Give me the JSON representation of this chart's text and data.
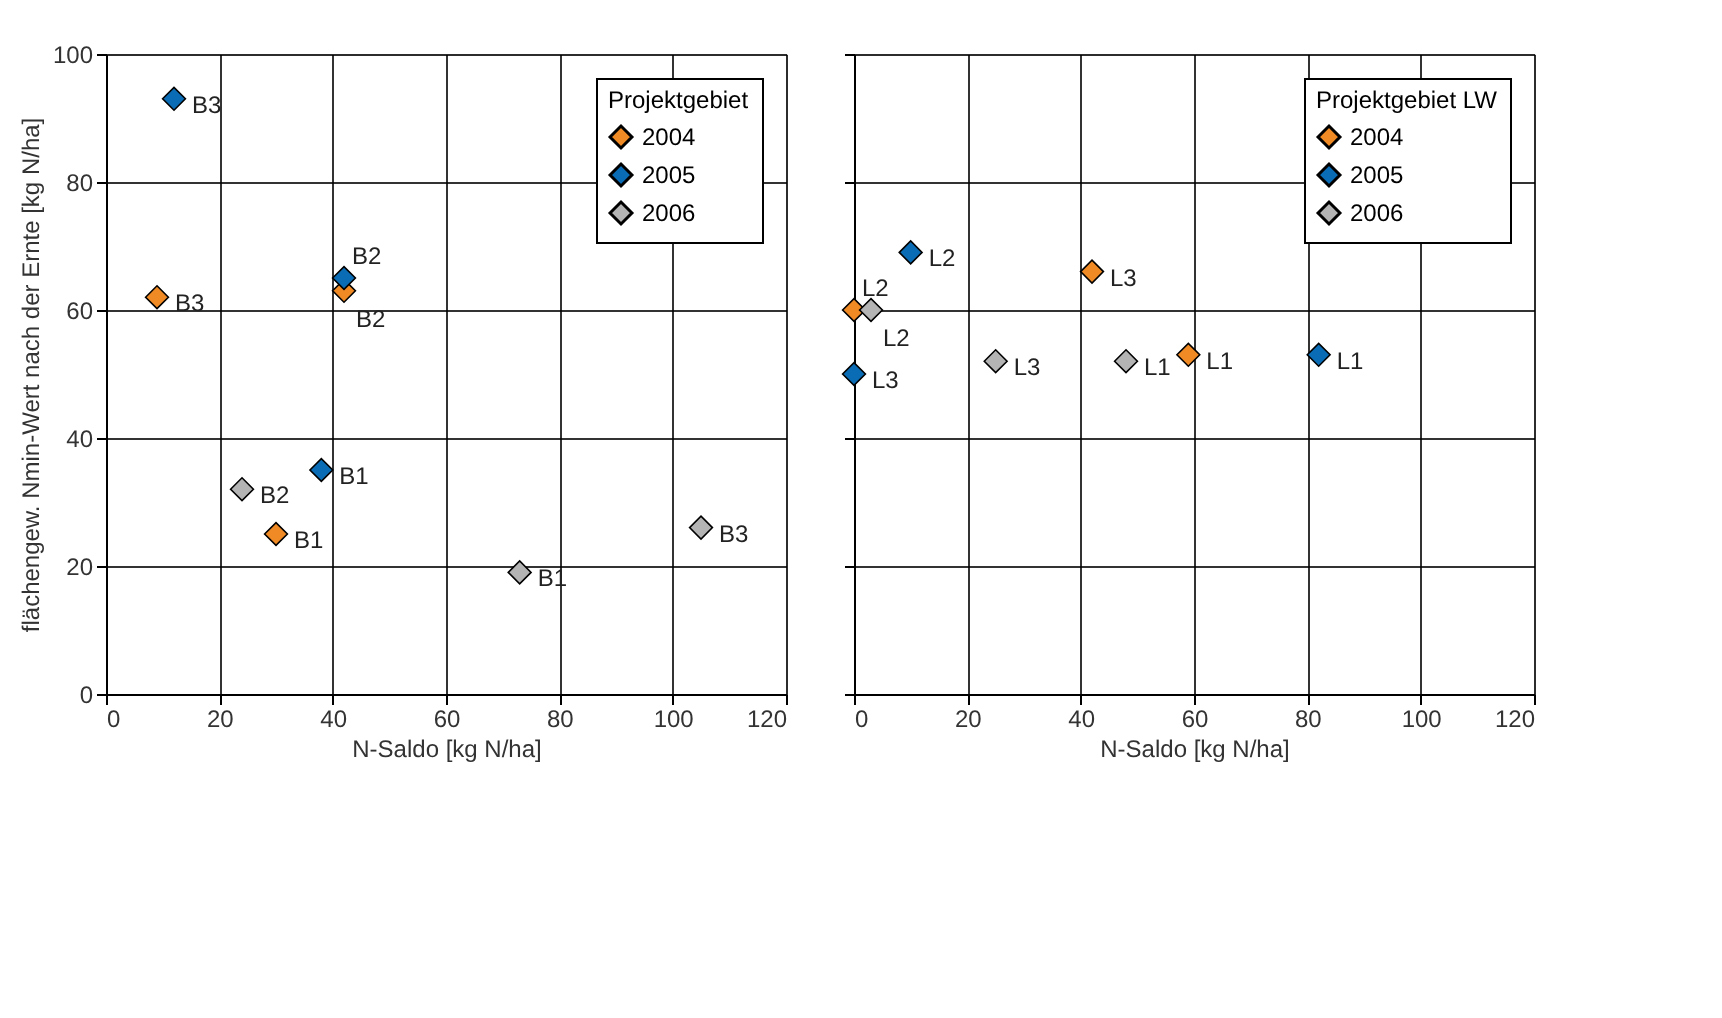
{
  "chart_data": [
    {
      "type": "scatter",
      "xlabel": "N-Saldo [kg N/ha]",
      "ylabel": "flächengew. Nmin-Wert nach der Ernte [kg N/ha]",
      "legend_title": "Projektgebiet",
      "xlim": [
        0,
        120
      ],
      "ylim": [
        0,
        100
      ],
      "xticks": [
        0,
        20,
        40,
        60,
        80,
        100,
        120
      ],
      "yticks": [
        0,
        20,
        40,
        60,
        80,
        100
      ],
      "grid": true,
      "legend": "top right",
      "marker": "diamond",
      "series": [
        {
          "name": "2004",
          "color": "#f08a24",
          "x": [
            9,
            42,
            30
          ],
          "values": [
            62,
            63,
            25
          ]
        },
        {
          "name": "2005",
          "color": "#0a6cb4",
          "x": [
            12,
            42,
            38
          ],
          "values": [
            93,
            65,
            35
          ]
        },
        {
          "name": "2006",
          "color": "#b4b4b4",
          "x": [
            24,
            73,
            105
          ],
          "values": [
            32,
            19,
            26
          ]
        }
      ],
      "annotations": [
        {
          "text": "B3",
          "x": 9,
          "y": 62
        },
        {
          "text": "B2",
          "x": 42,
          "y": 63
        },
        {
          "text": "B1",
          "x": 30,
          "y": 25
        },
        {
          "text": "B3",
          "x": 12,
          "y": 93
        },
        {
          "text": "B2",
          "x": 42,
          "y": 65
        },
        {
          "text": "B1",
          "x": 38,
          "y": 35
        },
        {
          "text": "B2",
          "x": 24,
          "y": 32
        },
        {
          "text": "B1",
          "x": 73,
          "y": 19
        },
        {
          "text": "B3",
          "x": 105,
          "y": 26
        }
      ]
    },
    {
      "type": "scatter",
      "xlabel": "N-Saldo [kg N/ha]",
      "legend_title": "Projektgebiet LW",
      "xlim": [
        0,
        120
      ],
      "ylim": [
        0,
        100
      ],
      "xticks": [
        0,
        20,
        40,
        60,
        80,
        100,
        120
      ],
      "yticks": [
        0,
        20,
        40,
        60,
        80,
        100
      ],
      "grid": true,
      "legend": "top right",
      "marker": "diamond",
      "tick_labels": "x",
      "series": [
        {
          "name": "2004",
          "color": "#f08a24",
          "x": [
            0,
            42,
            59
          ],
          "values": [
            60,
            66,
            53
          ]
        },
        {
          "name": "2005",
          "color": "#0a6cb4",
          "x": [
            10,
            0,
            82
          ],
          "values": [
            69,
            50,
            53
          ]
        },
        {
          "name": "2006",
          "color": "#b4b4b4",
          "x": [
            3,
            25,
            48
          ],
          "values": [
            60,
            52,
            52
          ]
        }
      ],
      "annotations": [
        {
          "text": "L2",
          "x": 0,
          "y": 60
        },
        {
          "text": "L3",
          "x": 42,
          "y": 66
        },
        {
          "text": "L1",
          "x": 59,
          "y": 53
        },
        {
          "text": "L2",
          "x": 10,
          "y": 69
        },
        {
          "text": "L3",
          "x": 0,
          "y": 50
        },
        {
          "text": "L1",
          "x": 82,
          "y": 53
        },
        {
          "text": "L2",
          "x": 3,
          "y": 60
        },
        {
          "text": "L3",
          "x": 25,
          "y": 52
        },
        {
          "text": "L1",
          "x": 48,
          "y": 52
        }
      ]
    }
  ]
}
